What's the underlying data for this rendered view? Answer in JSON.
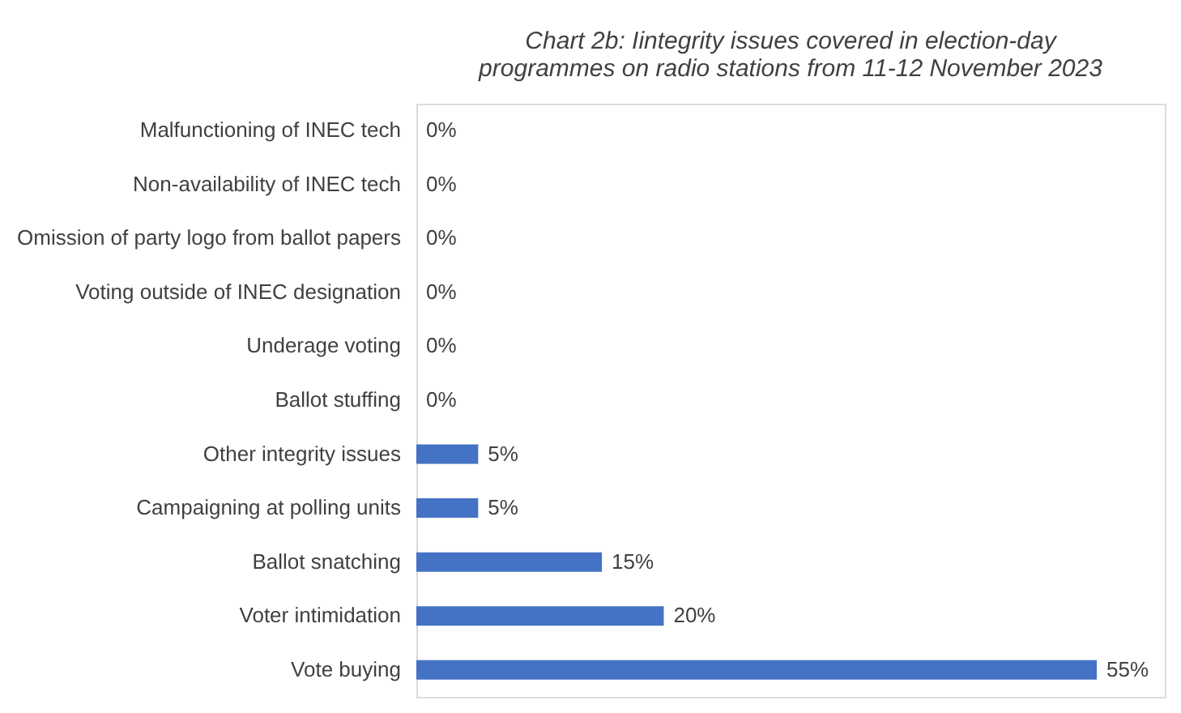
{
  "chart_data": {
    "type": "bar",
    "orientation": "horizontal",
    "title": "Chart 2b: Iintegrity issues covered in election-day programmes on radio stations from 11-12 November 2023",
    "categories": [
      "Malfunctioning of INEC tech",
      "Non-availability of INEC tech",
      "Omission of party logo from ballot papers",
      "Voting outside of INEC designation",
      "Underage voting",
      "Ballot stuffing",
      "Other integrity issues",
      "Campaigning at polling units",
      "Ballot snatching",
      "Voter intimidation",
      "Vote buying"
    ],
    "values": [
      0,
      0,
      0,
      0,
      0,
      0,
      5,
      5,
      15,
      20,
      55
    ],
    "value_labels": [
      "0%",
      "0%",
      "0%",
      "0%",
      "0%",
      "0%",
      "5%",
      "5%",
      "15%",
      "20%",
      "55%"
    ],
    "color": "#4472c4"
  }
}
